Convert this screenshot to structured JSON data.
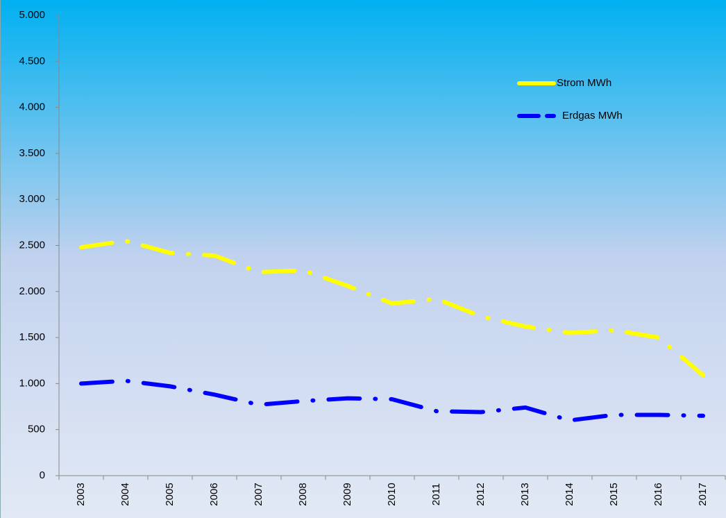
{
  "chart_data": {
    "type": "line",
    "categories": [
      "2003",
      "2004",
      "2005",
      "2006",
      "2007",
      "2008",
      "2009",
      "2010",
      "2011",
      "2012",
      "2013",
      "2014",
      "2015",
      "2016",
      "2017"
    ],
    "series": [
      {
        "name": "Strom MWh",
        "color": "#ffff00",
        "values": [
          2480,
          2550,
          2420,
          2390,
          2210,
          2230,
          2060,
          1870,
          1920,
          1730,
          1620,
          1550,
          1580,
          1500,
          1090
        ]
      },
      {
        "name": "Erdgas MWh",
        "color": "#0000ff",
        "values": [
          1000,
          1030,
          970,
          880,
          770,
          810,
          840,
          830,
          700,
          690,
          740,
          600,
          660,
          660,
          650
        ]
      }
    ],
    "ylim": [
      0,
      5000
    ],
    "yticks": [
      0,
      500,
      {
        "value": 1000,
        "label": "1.000"
      },
      {
        "value": 1500,
        "label": "1.500"
      },
      {
        "value": 2000,
        "label": "2.000"
      },
      {
        "value": 2500,
        "label": "2.500"
      },
      {
        "value": 3000,
        "label": "3.000"
      },
      {
        "value": 3500,
        "label": "3.500"
      },
      {
        "value": 4000,
        "label": "4.000"
      },
      {
        "value": 4500,
        "label": "4.500"
      },
      {
        "value": 5000,
        "label": "5.000"
      }
    ],
    "legend": "upper-right"
  }
}
